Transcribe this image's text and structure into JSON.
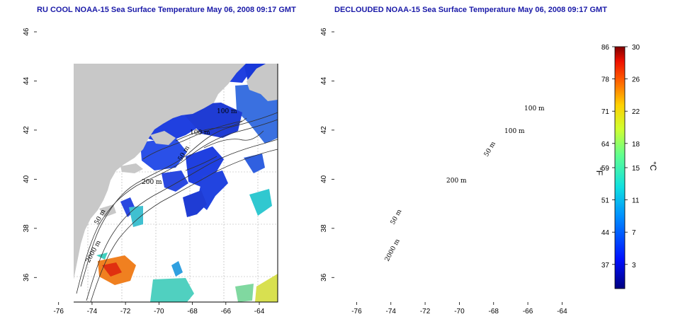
{
  "maps": [
    {
      "id": "left",
      "title": "RU COOL NOAA-15 Sea Surface Temperature May 06, 2008 09:17 GMT",
      "contour_labels": [
        "100 m",
        "100 m",
        "50 m",
        "200 m",
        "50 m",
        "2000 m"
      ]
    },
    {
      "id": "right",
      "title": "DECLOUDED NOAA-15 Sea Surface Temperature May 06, 2008 09:17 GMT",
      "contour_labels": [
        "100 m",
        "100 m",
        "50 m",
        "200 m",
        "50 m",
        "2000 m"
      ]
    }
  ],
  "axes": {
    "x_ticks": [
      "-76",
      "-74",
      "-72",
      "-70",
      "-68",
      "-66",
      "-64"
    ],
    "x_values": [
      -76,
      -74,
      -72,
      -70,
      -68,
      -66,
      -64
    ],
    "y_ticks": [
      "36",
      "38",
      "40",
      "42",
      "44",
      "46"
    ],
    "y_values": [
      36,
      38,
      40,
      42,
      44,
      46
    ],
    "lon_range": [
      -77.3,
      -62.9
    ],
    "lat_range": [
      35,
      46
    ]
  },
  "colorbar": {
    "unit_f": "°F",
    "unit_c": "°C",
    "fahrenheit_ticks": [
      "86",
      "78",
      "71",
      "64",
      "59",
      "51",
      "44",
      "37"
    ],
    "celsius_ticks": [
      "30",
      "26",
      "22",
      "18",
      "15",
      "11",
      "7",
      "3"
    ],
    "celsius_values": [
      30,
      26,
      22,
      18,
      15,
      11,
      7,
      3
    ],
    "celsius_range": [
      0,
      30
    ]
  },
  "colors": {
    "land": "#c8c8c8",
    "ocean": "#ffffff",
    "sst_cold": "#2040e0",
    "title": "#1a1aa8",
    "contour": "#303030",
    "grid": "#b0b0b0"
  }
}
